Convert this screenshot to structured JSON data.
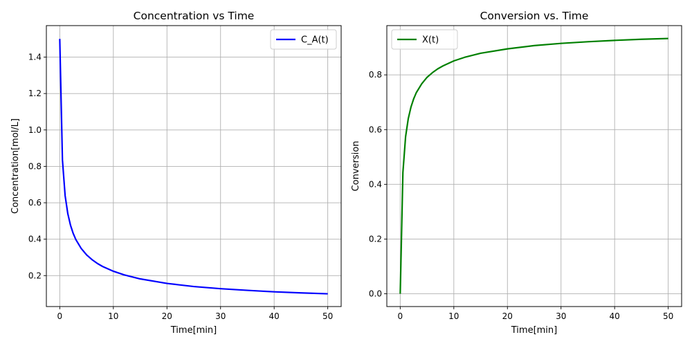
{
  "chart_data": [
    {
      "type": "line",
      "title": "Concentration vs Time",
      "xlabel": "Time[min]",
      "ylabel": "Concentration[mol/L]",
      "xlim": [
        -2.5,
        52.5
      ],
      "ylim": [
        0.03,
        1.573
      ],
      "xticks": [
        0,
        10,
        20,
        30,
        40,
        50
      ],
      "yticks": [
        0.2,
        0.4,
        0.6,
        0.8,
        1.0,
        1.2,
        1.4
      ],
      "ytick_labels": [
        "0.2",
        "0.4",
        "0.6",
        "0.8",
        "1.0",
        "1.2",
        "1.4"
      ],
      "grid": true,
      "legend_position": "top-right",
      "series": [
        {
          "name": "C_A(t)",
          "color": "#0000ff",
          "x": [
            0,
            0.5,
            1,
            1.5,
            2,
            2.5,
            3,
            4,
            5,
            6,
            7,
            8,
            10,
            12,
            15,
            20,
            25,
            30,
            35,
            40,
            45,
            50
          ],
          "y": [
            1.5,
            0.835,
            0.639,
            0.54,
            0.477,
            0.432,
            0.398,
            0.349,
            0.314,
            0.288,
            0.267,
            0.25,
            0.224,
            0.204,
            0.182,
            0.157,
            0.14,
            0.128,
            0.119,
            0.111,
            0.105,
            0.1
          ]
        }
      ]
    },
    {
      "type": "line",
      "title": "Conversion vs. Time",
      "xlabel": "Time[min]",
      "ylabel": "Conversion",
      "xlim": [
        -2.5,
        52.5
      ],
      "ylim": [
        -0.0467,
        0.98
      ],
      "xticks": [
        0,
        10,
        20,
        30,
        40,
        50
      ],
      "yticks": [
        0.0,
        0.2,
        0.4,
        0.6,
        0.8
      ],
      "ytick_labels": [
        "0.0",
        "0.2",
        "0.4",
        "0.6",
        "0.8"
      ],
      "grid": true,
      "legend_position": "top-left",
      "series": [
        {
          "name": "X(t)",
          "color": "#008000",
          "x": [
            0,
            0.5,
            1,
            1.5,
            2,
            2.5,
            3,
            4,
            5,
            6,
            7,
            8,
            10,
            12,
            15,
            20,
            25,
            30,
            35,
            40,
            45,
            50
          ],
          "y": [
            0,
            0.443,
            0.574,
            0.64,
            0.682,
            0.712,
            0.735,
            0.767,
            0.791,
            0.808,
            0.822,
            0.833,
            0.851,
            0.864,
            0.879,
            0.895,
            0.907,
            0.915,
            0.921,
            0.926,
            0.93,
            0.933
          ]
        }
      ]
    }
  ]
}
